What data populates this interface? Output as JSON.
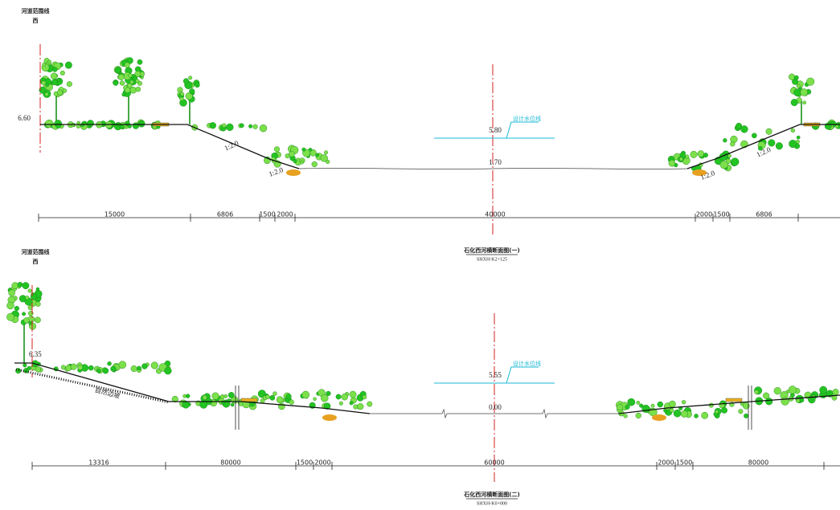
{
  "sections": [
    {
      "boundary_label": "河道范围线",
      "side": "西",
      "left_elevation": "6.60",
      "slope_labels": [
        "1:2.0",
        "1:2.0",
        "1:2.0",
        "1:2.0"
      ],
      "water_level": "5.80",
      "water_label": "设计水位线",
      "bed_elevation": "1.70",
      "dimensions": [
        "15000",
        "6806",
        "1500",
        "2000",
        "40000",
        "2000",
        "1500",
        "6806"
      ],
      "title": "石化西河横断面图(一)",
      "code": "SHXH-K2+125"
    },
    {
      "boundary_label": "河道范围线",
      "side": "西",
      "left_elevation": "6.35",
      "natural_slope": "自然边坡",
      "water_level": "5.55",
      "water_label": "设计水位线",
      "bed_elevation": "0.00",
      "dimensions": [
        "13316",
        "80000",
        "1500",
        "2000",
        "60000",
        "2000",
        "1500",
        "80000"
      ],
      "title": "石化西河横断面图(二)",
      "code": "SHXH-K0+000"
    }
  ]
}
